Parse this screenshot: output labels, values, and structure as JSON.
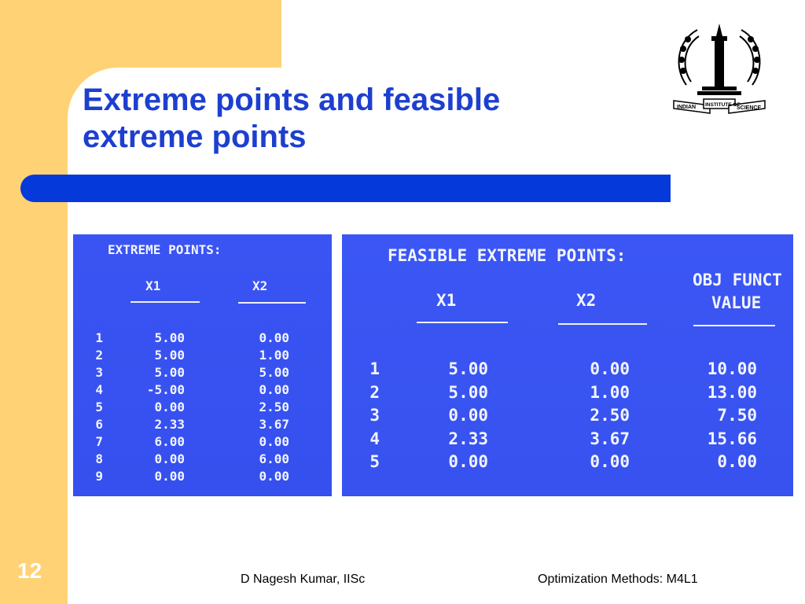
{
  "slide": {
    "title_line1": "Extreme points and feasible",
    "title_line2": "extreme points",
    "page_number": "12",
    "footer_author": "D Nagesh Kumar, IISc",
    "footer_course": "Optimization Methods: M4L1",
    "accent_color": "#0639d9",
    "frame_color": "#ffd275",
    "logo": {
      "icon": "indian-institute-of-science-seal",
      "text_left": "INDIAN",
      "text_mid": "INSTITUTE OF",
      "text_right": "SCIENCE"
    }
  },
  "extreme_points": {
    "heading": "EXTREME POINTS:",
    "col_x1": "X1",
    "col_x2": "X2",
    "rows": [
      {
        "n": "1",
        "x1": "5.00",
        "x2": "0.00"
      },
      {
        "n": "2",
        "x1": "5.00",
        "x2": "1.00"
      },
      {
        "n": "3",
        "x1": "5.00",
        "x2": "5.00"
      },
      {
        "n": "4",
        "x1": "-5.00",
        "x2": "0.00"
      },
      {
        "n": "5",
        "x1": "0.00",
        "x2": "2.50"
      },
      {
        "n": "6",
        "x1": "2.33",
        "x2": "3.67"
      },
      {
        "n": "7",
        "x1": "6.00",
        "x2": "0.00"
      },
      {
        "n": "8",
        "x1": "0.00",
        "x2": "6.00"
      },
      {
        "n": "9",
        "x1": "0.00",
        "x2": "0.00"
      }
    ]
  },
  "feasible_extreme_points": {
    "heading": "FEASIBLE EXTREME POINTS:",
    "col_x1": "X1",
    "col_x2": "X2",
    "col_obj_line1": "OBJ FUNCT",
    "col_obj_line2": "VALUE",
    "rows": [
      {
        "n": "1",
        "x1": "5.00",
        "x2": "0.00",
        "obj": "10.00"
      },
      {
        "n": "2",
        "x1": "5.00",
        "x2": "1.00",
        "obj": "13.00"
      },
      {
        "n": "3",
        "x1": "0.00",
        "x2": "2.50",
        "obj": "7.50"
      },
      {
        "n": "4",
        "x1": "2.33",
        "x2": "3.67",
        "obj": "15.66"
      },
      {
        "n": "5",
        "x1": "0.00",
        "x2": "0.00",
        "obj": "0.00"
      }
    ]
  }
}
